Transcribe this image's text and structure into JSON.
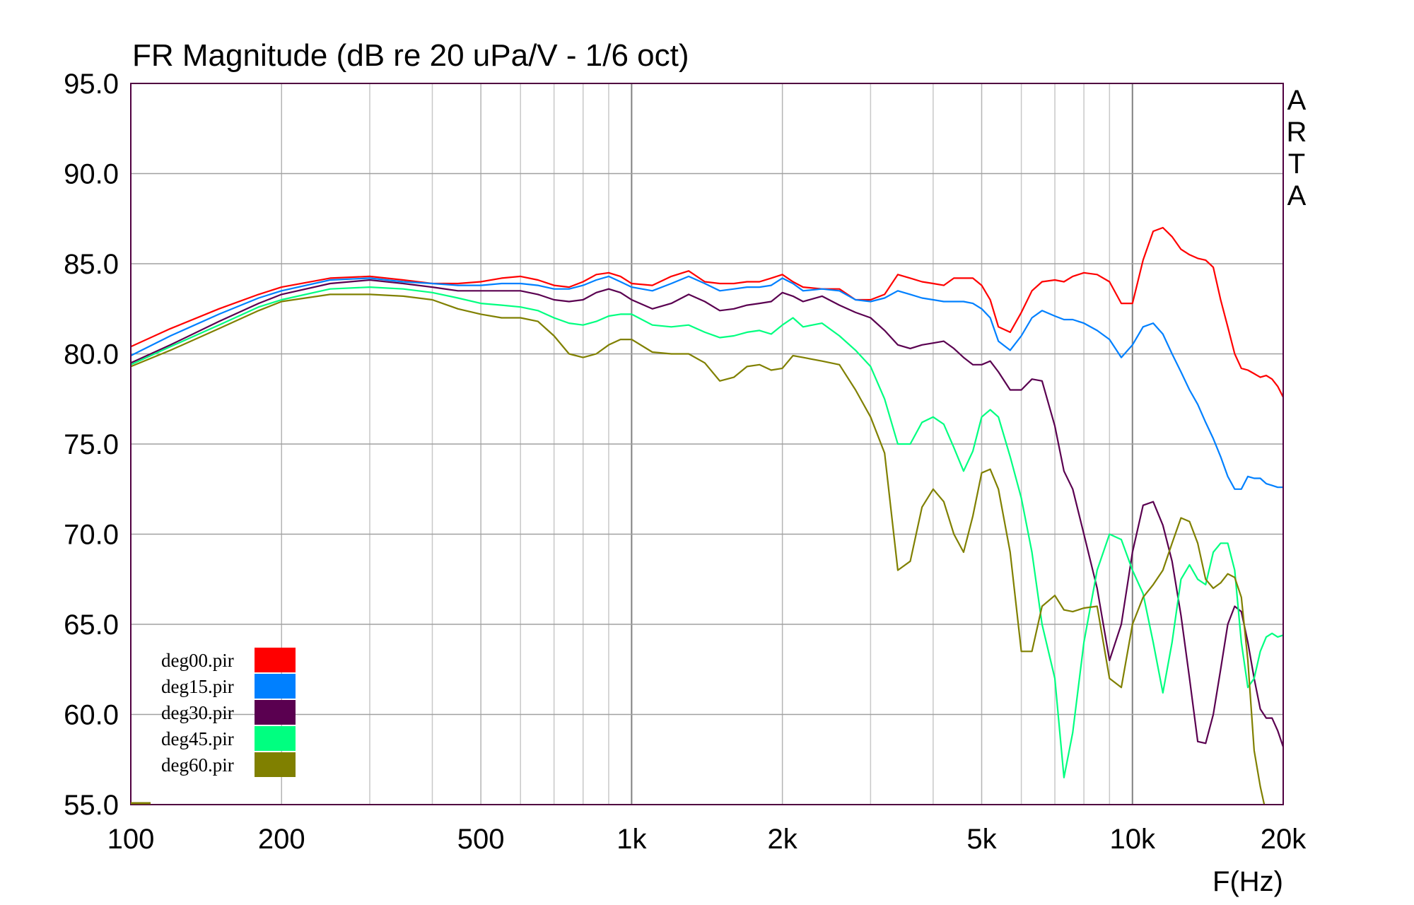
{
  "chart_data": {
    "type": "line",
    "title": "FR Magnitude (dB re 20 uPa/V - 1/6 oct)",
    "xlabel": "F(Hz)",
    "ylabel": "",
    "x_scale": "log",
    "xlim": [
      100,
      20000
    ],
    "ylim": [
      55,
      95
    ],
    "grid": true,
    "legend_position": "bottom-left",
    "brand_letters": [
      "A",
      "R",
      "T",
      "A"
    ],
    "x_ticks": [
      {
        "value": 100,
        "label": "100"
      },
      {
        "value": 200,
        "label": "200"
      },
      {
        "value": 500,
        "label": "500"
      },
      {
        "value": 1000,
        "label": "1k"
      },
      {
        "value": 2000,
        "label": "2k"
      },
      {
        "value": 5000,
        "label": "5k"
      },
      {
        "value": 10000,
        "label": "10k"
      },
      {
        "value": 20000,
        "label": "20k"
      }
    ],
    "y_ticks": [
      {
        "value": 95,
        "label": "95.0"
      },
      {
        "value": 90,
        "label": "90.0"
      },
      {
        "value": 85,
        "label": "85.0"
      },
      {
        "value": 80,
        "label": "80.0"
      },
      {
        "value": 75,
        "label": "75.0"
      },
      {
        "value": 70,
        "label": "70.0"
      },
      {
        "value": 65,
        "label": "65.0"
      },
      {
        "value": 60,
        "label": "60.0"
      },
      {
        "value": 55,
        "label": "55.0"
      }
    ],
    "x": [
      100,
      120,
      150,
      180,
      200,
      250,
      300,
      350,
      400,
      450,
      500,
      550,
      600,
      650,
      700,
      750,
      800,
      850,
      900,
      950,
      1000,
      1100,
      1200,
      1300,
      1400,
      1500,
      1600,
      1700,
      1800,
      1900,
      2000,
      2100,
      2200,
      2400,
      2600,
      2800,
      3000,
      3200,
      3400,
      3600,
      3800,
      4000,
      4200,
      4400,
      4600,
      4800,
      5000,
      5200,
      5400,
      5700,
      6000,
      6300,
      6600,
      7000,
      7300,
      7600,
      8000,
      8500,
      9000,
      9500,
      10000,
      10500,
      11000,
      11500,
      12000,
      12500,
      13000,
      13500,
      14000,
      14500,
      15000,
      15500,
      16000,
      16500,
      17000,
      17500,
      18000,
      18500,
      19000,
      19500,
      20000
    ],
    "series": [
      {
        "name": "deg00.pir",
        "color": "#ff0000",
        "values": [
          80.4,
          81.4,
          82.5,
          83.3,
          83.7,
          84.2,
          84.3,
          84.1,
          83.9,
          83.9,
          84.0,
          84.2,
          84.3,
          84.1,
          83.8,
          83.7,
          84.0,
          84.4,
          84.5,
          84.3,
          83.9,
          83.8,
          84.3,
          84.6,
          84.0,
          83.9,
          83.9,
          84.0,
          84.0,
          84.2,
          84.4,
          84.0,
          83.7,
          83.6,
          83.6,
          83.0,
          83.0,
          83.3,
          84.4,
          84.2,
          84.0,
          83.9,
          83.8,
          84.2,
          84.2,
          84.2,
          83.8,
          83.0,
          81.5,
          81.2,
          82.3,
          83.5,
          84.0,
          84.1,
          84.0,
          84.3,
          84.5,
          84.4,
          84.0,
          82.8,
          82.8,
          85.2,
          86.8,
          87.0,
          86.5,
          85.8,
          85.5,
          85.3,
          85.2,
          84.8,
          83.0,
          81.5,
          80.0,
          79.2,
          79.1,
          78.9,
          78.7,
          78.8,
          78.6,
          78.2,
          77.6
        ]
      },
      {
        "name": "deg15.pir",
        "color": "#0080ff",
        "values": [
          79.9,
          81.0,
          82.2,
          83.1,
          83.5,
          84.1,
          84.2,
          84.0,
          83.9,
          83.8,
          83.8,
          83.9,
          83.9,
          83.8,
          83.6,
          83.6,
          83.8,
          84.1,
          84.3,
          84.0,
          83.7,
          83.5,
          83.9,
          84.3,
          83.9,
          83.5,
          83.6,
          83.7,
          83.7,
          83.8,
          84.2,
          83.9,
          83.5,
          83.6,
          83.5,
          83.0,
          82.9,
          83.1,
          83.5,
          83.3,
          83.1,
          83.0,
          82.9,
          82.9,
          82.9,
          82.8,
          82.5,
          82.0,
          80.7,
          80.2,
          81.0,
          82.0,
          82.4,
          82.1,
          81.9,
          81.9,
          81.7,
          81.3,
          80.8,
          79.8,
          80.5,
          81.5,
          81.7,
          81.1,
          80.0,
          79.0,
          78.0,
          77.2,
          76.2,
          75.3,
          74.3,
          73.2,
          72.5,
          72.5,
          73.2,
          73.1,
          73.1,
          72.8,
          72.7,
          72.6,
          72.6
        ]
      },
      {
        "name": "deg30.pir",
        "color": "#5a0050",
        "values": [
          79.5,
          80.5,
          81.8,
          82.8,
          83.3,
          83.9,
          84.1,
          83.9,
          83.7,
          83.5,
          83.5,
          83.5,
          83.5,
          83.3,
          83.0,
          82.9,
          83.0,
          83.4,
          83.6,
          83.4,
          83.0,
          82.5,
          82.8,
          83.3,
          82.9,
          82.4,
          82.5,
          82.7,
          82.8,
          82.9,
          83.4,
          83.2,
          82.9,
          83.2,
          82.7,
          82.3,
          82.0,
          81.3,
          80.5,
          80.3,
          80.5,
          80.6,
          80.7,
          80.3,
          79.8,
          79.4,
          79.4,
          79.6,
          79.0,
          78.0,
          78.0,
          78.6,
          78.5,
          76.0,
          73.5,
          72.5,
          70.0,
          67.0,
          63.0,
          65.0,
          69.0,
          71.6,
          71.8,
          70.5,
          68.5,
          65.5,
          62.0,
          58.5,
          58.4,
          60.0,
          62.5,
          65.0,
          66.0,
          65.7,
          64.0,
          62.0,
          60.3,
          59.8,
          59.8,
          59.1,
          58.2
        ]
      },
      {
        "name": "deg45.pir",
        "color": "#00ff80",
        "values": [
          79.4,
          80.4,
          81.6,
          82.6,
          83.0,
          83.6,
          83.7,
          83.6,
          83.4,
          83.1,
          82.8,
          82.7,
          82.6,
          82.4,
          82.0,
          81.7,
          81.6,
          81.8,
          82.1,
          82.2,
          82.2,
          81.6,
          81.5,
          81.6,
          81.2,
          80.9,
          81.0,
          81.2,
          81.3,
          81.1,
          81.6,
          82.0,
          81.5,
          81.7,
          81.0,
          80.2,
          79.3,
          77.5,
          75.0,
          75.0,
          76.2,
          76.5,
          76.1,
          74.8,
          73.5,
          74.6,
          76.5,
          76.9,
          76.5,
          74.3,
          72.0,
          69.0,
          65.0,
          62.0,
          56.5,
          59.0,
          64.0,
          68.0,
          70.0,
          69.7,
          68.0,
          66.7,
          64.0,
          61.2,
          64.0,
          67.5,
          68.3,
          67.5,
          67.2,
          69.0,
          69.5,
          69.5,
          68.0,
          64.0,
          61.5,
          62.0,
          63.5,
          64.3,
          64.5,
          64.3,
          64.4
        ]
      },
      {
        "name": "deg60.pir",
        "color": "#808000",
        "values": [
          79.3,
          80.2,
          81.4,
          82.4,
          82.9,
          83.3,
          83.3,
          83.2,
          83.0,
          82.5,
          82.2,
          82.0,
          82.0,
          81.8,
          81.0,
          80.0,
          79.8,
          80.0,
          80.5,
          80.8,
          80.8,
          80.1,
          80.0,
          80.0,
          79.5,
          78.5,
          78.7,
          79.3,
          79.4,
          79.1,
          79.2,
          79.9,
          79.8,
          79.6,
          79.4,
          78.0,
          76.5,
          74.5,
          68.0,
          68.5,
          71.5,
          72.5,
          71.8,
          70.0,
          69.0,
          71.0,
          73.4,
          73.6,
          72.5,
          69.0,
          63.5,
          63.5,
          66.0,
          66.6,
          65.8,
          65.7,
          65.9,
          66.0,
          62.0,
          61.5,
          65.0,
          66.5,
          67.2,
          68.0,
          69.5,
          70.9,
          70.7,
          69.5,
          67.5,
          67.0,
          67.3,
          67.8,
          67.6,
          66.5,
          63.0,
          58.0,
          56.0,
          54.5,
          54.0,
          54.0,
          54.0
        ]
      }
    ]
  }
}
